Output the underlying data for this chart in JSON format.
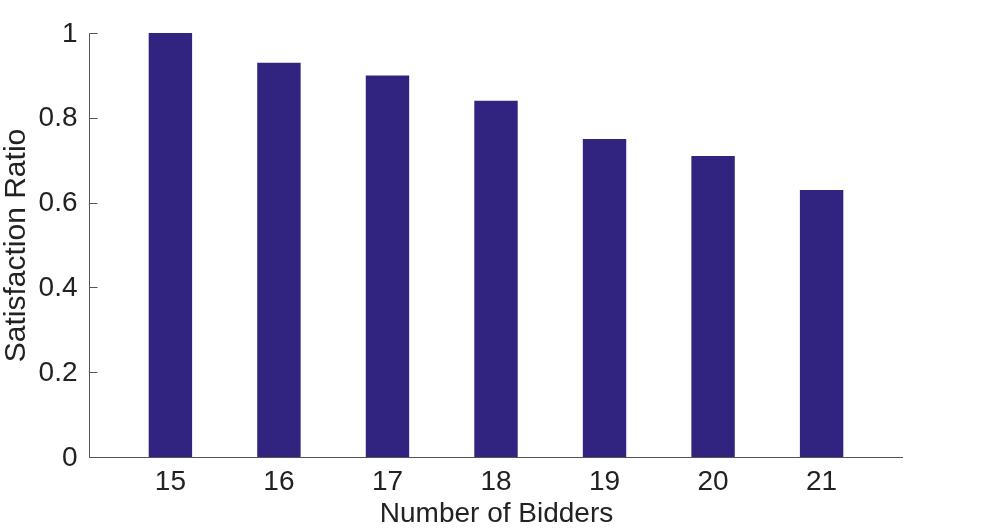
{
  "chart_data": {
    "type": "bar",
    "xlabel": "Number of Bidders",
    "ylabel": "Satisfaction Ratio",
    "categories": [
      "15",
      "16",
      "17",
      "18",
      "19",
      "20",
      "21"
    ],
    "values": [
      1.0,
      0.93,
      0.9,
      0.84,
      0.75,
      0.71,
      0.63
    ],
    "color": "#312480",
    "ylim": [
      0,
      1
    ],
    "yticks": [
      0,
      0.2,
      0.4,
      0.6,
      0.8,
      1
    ],
    "grid": false
  }
}
